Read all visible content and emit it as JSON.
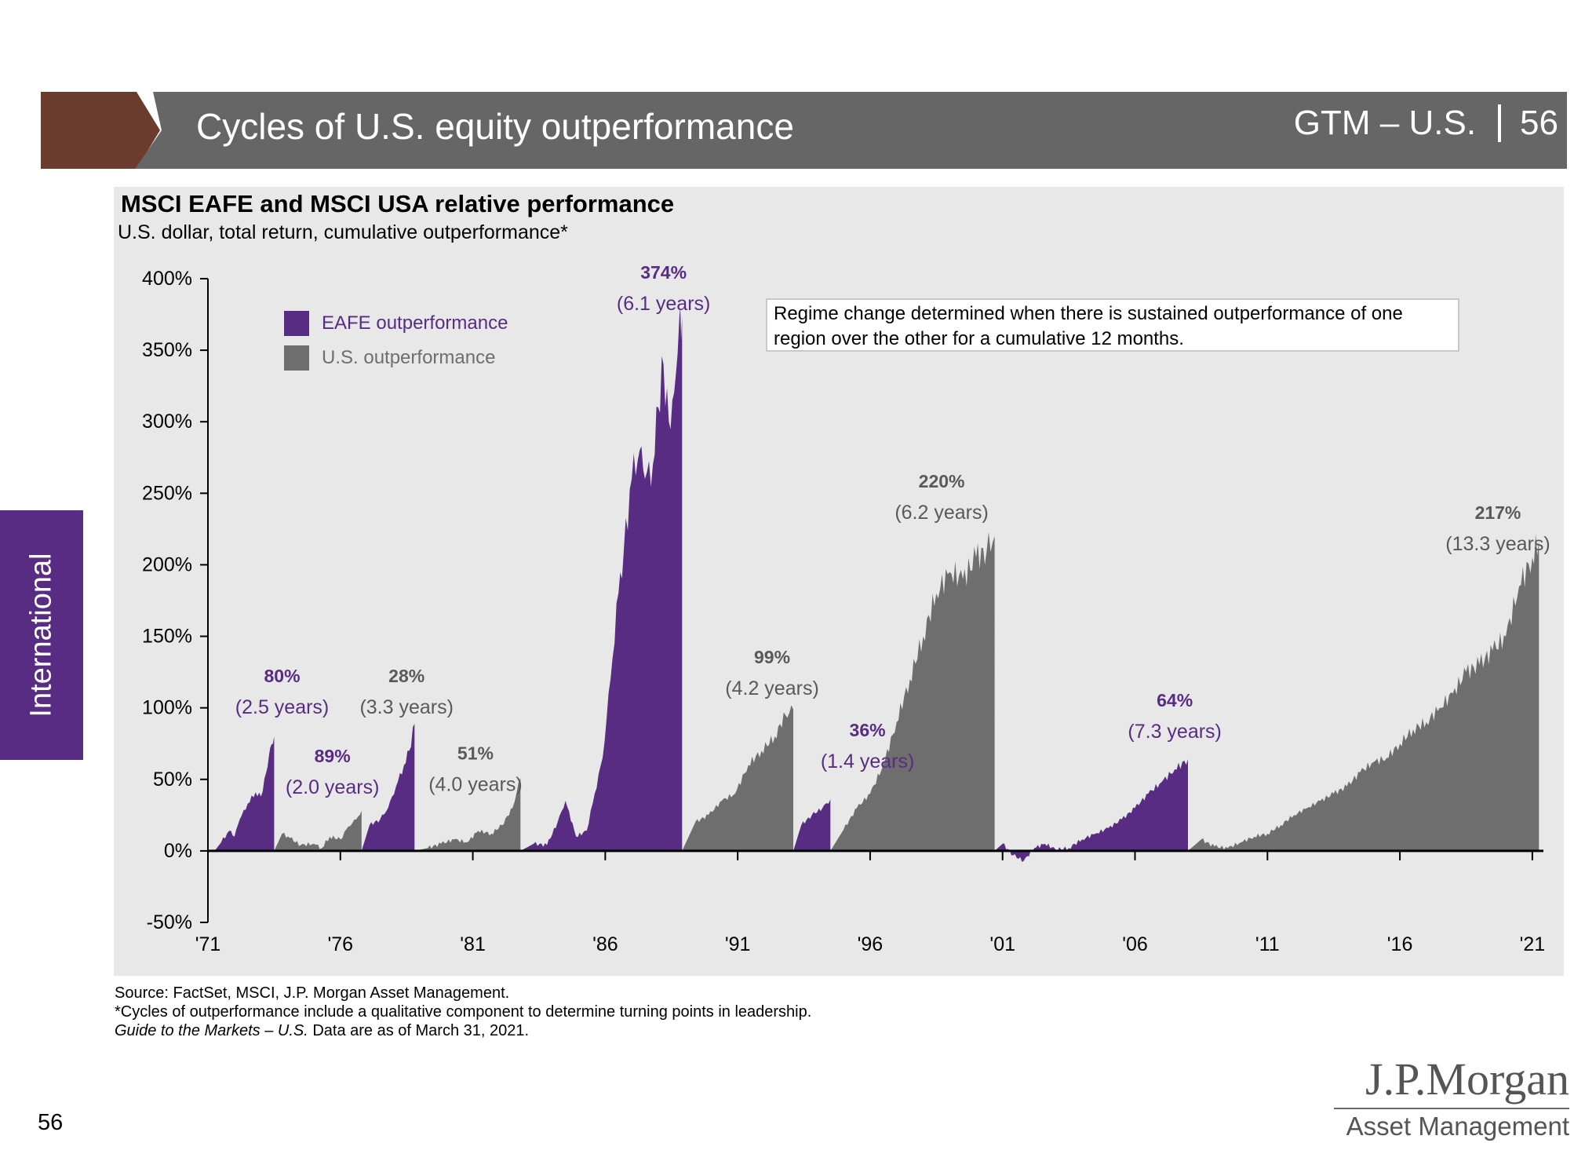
{
  "header": {
    "title": "Cycles of U.S. equity outperformance",
    "section_label": "GTM – U.S.",
    "page_number": "56",
    "colors": {
      "bar": "#666666",
      "accent": "#6b3c2e"
    }
  },
  "side_tab": {
    "label": "International",
    "color": "#582c83"
  },
  "note": "Regime change determined when there is sustained outperformance of one region over the other for a cumulative 12 months.",
  "legend": [
    {
      "label": "EAFE outperformance",
      "color": "#582c83"
    },
    {
      "label": "U.S. outperformance",
      "color": "#6e6e6e"
    }
  ],
  "footer": {
    "source": "Source: FactSet, MSCI, J.P. Morgan Asset Management.",
    "footnote": "*Cycles of outperformance include a qualitative component to determine turning points in leadership.",
    "guide_italic": "Guide to the Markets – U.S.",
    "as_of": " Data are as of March 31, 2021."
  },
  "page_number": "56",
  "logo": {
    "name": "J.P.Morgan",
    "sub": "Asset Management"
  },
  "chart_data": {
    "type": "area",
    "title": "MSCI EAFE and MSCI USA relative performance",
    "subtitle": "U.S. dollar, total return, cumulative outperformance*",
    "ylim": [
      -50,
      400
    ],
    "yticks": [
      -50,
      0,
      50,
      100,
      150,
      200,
      250,
      300,
      350,
      400
    ],
    "ytick_labels": [
      "-50%",
      "0%",
      "50%",
      "100%",
      "150%",
      "200%",
      "250%",
      "300%",
      "350%",
      "400%"
    ],
    "xlim": [
      1971,
      2021.3
    ],
    "xticks": [
      1971,
      1976,
      1981,
      1986,
      1991,
      1996,
      2001,
      2006,
      2011,
      2016,
      2021
    ],
    "xtick_labels": [
      "'71",
      "'76",
      "'81",
      "'86",
      "'91",
      "'96",
      "'01",
      "'06",
      "'11",
      "'16",
      "'21"
    ],
    "colors": {
      "EAFE": "#582c83",
      "US": "#6e6e6e"
    },
    "cycles": [
      {
        "leader": "EAFE",
        "start": 1971.25,
        "end": 1973.5,
        "peak": 80,
        "label_value": "80%",
        "label_duration": "(2.5 years)",
        "points": [
          [
            1971.25,
            0
          ],
          [
            1971.5,
            6
          ],
          [
            1971.8,
            14
          ],
          [
            1972.0,
            10
          ],
          [
            1972.2,
            22
          ],
          [
            1972.5,
            33
          ],
          [
            1972.8,
            41
          ],
          [
            1973.0,
            38
          ],
          [
            1973.2,
            55
          ],
          [
            1973.35,
            72
          ],
          [
            1973.5,
            80
          ]
        ]
      },
      {
        "leader": "US",
        "start": 1973.5,
        "end": 1976.8,
        "peak": 28,
        "label_value": "28%",
        "label_duration": "(3.3 years)",
        "points": [
          [
            1973.5,
            0
          ],
          [
            1973.8,
            12
          ],
          [
            1974.1,
            9
          ],
          [
            1974.5,
            4
          ],
          [
            1975.0,
            5
          ],
          [
            1975.3,
            2
          ],
          [
            1975.6,
            10
          ],
          [
            1976.0,
            8
          ],
          [
            1976.3,
            17
          ],
          [
            1976.6,
            22
          ],
          [
            1976.8,
            28
          ]
        ]
      },
      {
        "leader": "EAFE",
        "start": 1976.8,
        "end": 1978.8,
        "peak": 89,
        "label_value": "89%",
        "label_duration": "(2.0 years)",
        "points": [
          [
            1976.8,
            0
          ],
          [
            1977.1,
            18
          ],
          [
            1977.5,
            22
          ],
          [
            1977.8,
            30
          ],
          [
            1978.1,
            45
          ],
          [
            1978.4,
            60
          ],
          [
            1978.6,
            70
          ],
          [
            1978.8,
            89
          ]
        ]
      },
      {
        "leader": "US",
        "start": 1978.8,
        "end": 1982.8,
        "peak": 51,
        "label_value": "51%",
        "label_duration": "(4.0 years)",
        "points": [
          [
            1978.8,
            0
          ],
          [
            1979.3,
            2
          ],
          [
            1979.8,
            5
          ],
          [
            1980.3,
            8
          ],
          [
            1980.8,
            6
          ],
          [
            1981.2,
            14
          ],
          [
            1981.7,
            12
          ],
          [
            1982.1,
            18
          ],
          [
            1982.5,
            30
          ],
          [
            1982.8,
            51
          ]
        ]
      },
      {
        "leader": "EAFE",
        "start": 1982.8,
        "end": 1988.9,
        "peak": 374,
        "label_value": "374%",
        "label_duration": "(6.1 years)",
        "points": [
          [
            1982.8,
            0
          ],
          [
            1983.3,
            5
          ],
          [
            1983.8,
            4
          ],
          [
            1984.2,
            20
          ],
          [
            1984.5,
            35
          ],
          [
            1984.9,
            10
          ],
          [
            1985.3,
            14
          ],
          [
            1985.6,
            40
          ],
          [
            1985.9,
            65
          ],
          [
            1986.2,
            120
          ],
          [
            1986.5,
            180
          ],
          [
            1986.7,
            210
          ],
          [
            1987.0,
            260
          ],
          [
            1987.3,
            280
          ],
          [
            1987.5,
            260
          ],
          [
            1987.8,
            270
          ],
          [
            1988.0,
            310
          ],
          [
            1988.2,
            340
          ],
          [
            1988.4,
            300
          ],
          [
            1988.6,
            320
          ],
          [
            1988.8,
            374
          ],
          [
            1988.9,
            374
          ]
        ]
      },
      {
        "leader": "US",
        "start": 1988.9,
        "end": 1993.1,
        "peak": 99,
        "label_value": "99%",
        "label_duration": "(4.2 years)",
        "points": [
          [
            1988.9,
            0
          ],
          [
            1989.4,
            20
          ],
          [
            1989.9,
            25
          ],
          [
            1990.4,
            35
          ],
          [
            1990.9,
            40
          ],
          [
            1991.4,
            60
          ],
          [
            1991.9,
            70
          ],
          [
            1992.4,
            80
          ],
          [
            1992.8,
            95
          ],
          [
            1993.1,
            99
          ]
        ]
      },
      {
        "leader": "EAFE",
        "start": 1993.1,
        "end": 1994.5,
        "peak": 36,
        "label_value": "36%",
        "label_duration": "(1.4 years)",
        "points": [
          [
            1993.1,
            0
          ],
          [
            1993.4,
            18
          ],
          [
            1993.8,
            25
          ],
          [
            1994.2,
            30
          ],
          [
            1994.5,
            36
          ]
        ]
      },
      {
        "leader": "US",
        "start": 1994.5,
        "end": 2000.7,
        "peak": 220,
        "label_value": "220%",
        "label_duration": "(6.2 years)",
        "points": [
          [
            1994.5,
            0
          ],
          [
            1995.0,
            15
          ],
          [
            1995.5,
            30
          ],
          [
            1996.0,
            40
          ],
          [
            1996.5,
            60
          ],
          [
            1997.0,
            90
          ],
          [
            1997.5,
            120
          ],
          [
            1998.0,
            150
          ],
          [
            1998.5,
            180
          ],
          [
            1999.0,
            195
          ],
          [
            1999.5,
            190
          ],
          [
            2000.0,
            205
          ],
          [
            2000.4,
            210
          ],
          [
            2000.7,
            220
          ]
        ]
      },
      {
        "leader": "EAFE",
        "start": 2000.7,
        "end": 2008.0,
        "peak": 64,
        "label_value": "64%",
        "label_duration": "(7.3 years)",
        "points": [
          [
            2000.7,
            0
          ],
          [
            2001.0,
            5
          ],
          [
            2001.4,
            -3
          ],
          [
            2001.8,
            -7
          ],
          [
            2002.2,
            2
          ],
          [
            2002.6,
            5
          ],
          [
            2003.0,
            1
          ],
          [
            2003.5,
            2
          ],
          [
            2004.0,
            8
          ],
          [
            2004.5,
            12
          ],
          [
            2005.0,
            16
          ],
          [
            2005.5,
            22
          ],
          [
            2006.0,
            30
          ],
          [
            2006.5,
            40
          ],
          [
            2007.0,
            48
          ],
          [
            2007.5,
            57
          ],
          [
            2008.0,
            64
          ]
        ]
      },
      {
        "leader": "US",
        "start": 2008.0,
        "end": 2021.25,
        "peak": 217,
        "label_value": "217%",
        "label_duration": "(13.3 years)",
        "points": [
          [
            2008.0,
            0
          ],
          [
            2008.5,
            8
          ],
          [
            2009.0,
            3
          ],
          [
            2009.5,
            2
          ],
          [
            2010.0,
            6
          ],
          [
            2010.5,
            10
          ],
          [
            2011.0,
            12
          ],
          [
            2011.5,
            18
          ],
          [
            2012.0,
            25
          ],
          [
            2012.5,
            30
          ],
          [
            2013.0,
            35
          ],
          [
            2013.5,
            40
          ],
          [
            2014.0,
            45
          ],
          [
            2014.5,
            55
          ],
          [
            2015.0,
            62
          ],
          [
            2015.5,
            65
          ],
          [
            2016.0,
            75
          ],
          [
            2016.5,
            85
          ],
          [
            2017.0,
            90
          ],
          [
            2017.5,
            100
          ],
          [
            2018.0,
            110
          ],
          [
            2018.5,
            125
          ],
          [
            2019.0,
            130
          ],
          [
            2019.5,
            140
          ],
          [
            2020.0,
            150
          ],
          [
            2020.5,
            185
          ],
          [
            2021.0,
            205
          ],
          [
            2021.25,
            217
          ]
        ]
      }
    ],
    "label_positions": [
      {
        "x": 1973.8,
        "value_y": 118
      },
      {
        "x": 1978.5,
        "value_y": 118
      },
      {
        "x": 1975.7,
        "value_y": 62
      },
      {
        "x": 1981.1,
        "value_y": 64
      },
      {
        "x": 1988.2,
        "value_y": 400
      },
      {
        "x": 1992.3,
        "value_y": 131
      },
      {
        "x": 1995.9,
        "value_y": 80
      },
      {
        "x": 1998.7,
        "value_y": 254
      },
      {
        "x": 2007.5,
        "value_y": 101
      },
      {
        "x": 2019.7,
        "value_y": 232
      }
    ]
  }
}
